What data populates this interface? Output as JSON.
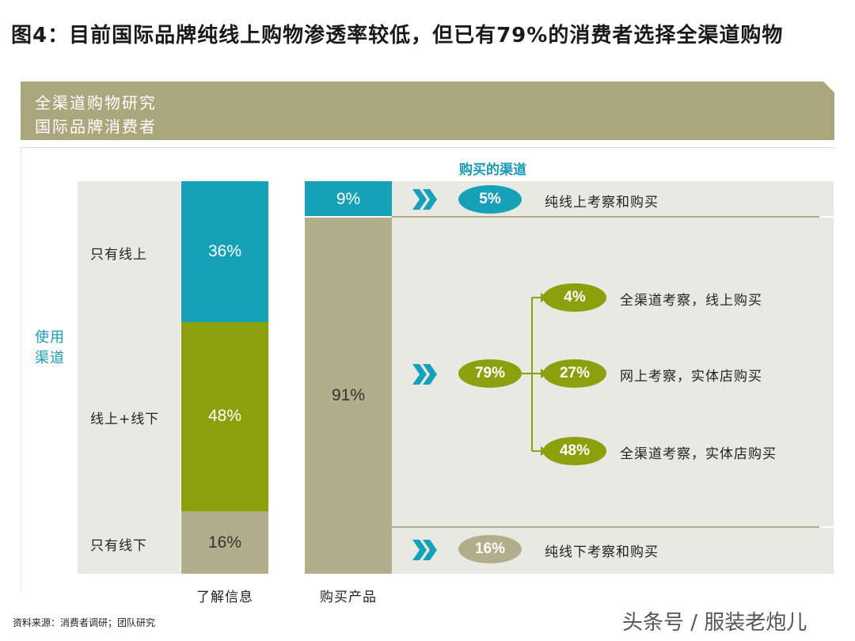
{
  "figure_title": "图4：目前国际品牌纯线上购物渗透率较低，但已有79%的消费者选择全渠道购物",
  "banner": {
    "line1": "全渠道购物研究",
    "line2": "国际品牌消费者"
  },
  "colors": {
    "teal": "#16a1b8",
    "green": "#8aa10d",
    "khaki": "#b2ad8b",
    "band": "#e9e9e3",
    "banner": "#aca67f"
  },
  "chart_data": {
    "type": "stacked-bar-flow",
    "y_group_label": "使用渠道",
    "channels_header": "购买的渠道",
    "bars": [
      {
        "label": "了解信息",
        "segments": [
          {
            "name": "只有线上",
            "value": 36,
            "text": "36%",
            "color": "teal"
          },
          {
            "name": "线上+线下",
            "value": 48,
            "text": "48%",
            "color": "green"
          },
          {
            "name": "只有线下",
            "value": 16,
            "text": "16%",
            "color": "khaki"
          }
        ]
      },
      {
        "label": "购买产品",
        "segments": [
          {
            "name": "线上",
            "value": 9,
            "text": "9%",
            "color": "teal"
          },
          {
            "name": "线下",
            "value": 91,
            "text": "91%",
            "color": "khaki"
          }
        ]
      }
    ],
    "flows": [
      {
        "value": 5,
        "text": "5%",
        "description": "纯线上考察和购买",
        "color": "teal"
      },
      {
        "value": 79,
        "text": "79%",
        "color": "green",
        "children": [
          {
            "value": 4,
            "text": "4%",
            "description": "全渠道考察，线上购买"
          },
          {
            "value": 27,
            "text": "27%",
            "description": "网上考察，实体店购买"
          },
          {
            "value": 48,
            "text": "48%",
            "description": "全渠道考察，实体店购买"
          }
        ]
      },
      {
        "value": 16,
        "text": "16%",
        "description": "纯线下考察和购买",
        "color": "khaki"
      }
    ]
  },
  "source_note": "资料来源：消费者调研；团队研究",
  "watermark": "头条号 / 服装老炮儿"
}
